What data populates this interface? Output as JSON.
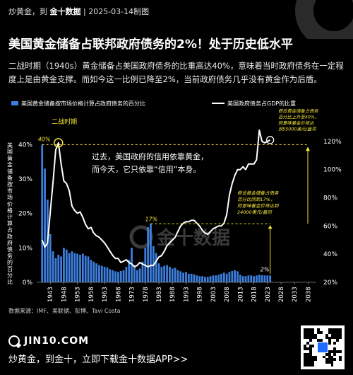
{
  "header": {
    "brand": "炒黄金，到",
    "logo_text": "金十数据",
    "sep": "|",
    "date": "2025-03-14制图"
  },
  "title": "美国黄金储备占联邦政府债务的2%！处于历史低水平",
  "intro": "二战时期（1940s）黄金储备占美国政府债务的比重高达40%，意味着当时政府债务在一定程度上是由黄金支撑。而如今这一比例已降至2%，当前政府债务几乎没有黄金作为后盾。",
  "source": "数据来源：IMF、美联储、彭博、Tavi Costa",
  "footer": {
    "url": "JIN10.COM",
    "cta": "炒黄金，到金十，立即下载金十数据APP>>"
  },
  "watermark": "金十数据",
  "colors": {
    "bar": "#3d7fe0",
    "line": "#ffffff",
    "annotation": "#f2e43a",
    "background": "#000000"
  },
  "chart_data": {
    "type": "bar",
    "x_ticks": [
      "1943",
      "1948",
      "1953",
      "1958",
      "1963",
      "1968",
      "1973",
      "1978",
      "1983",
      "1988",
      "1993",
      "1998",
      "2003",
      "2008",
      "2013",
      "2018",
      "2023",
      "2028",
      "2033",
      "2038"
    ],
    "years": [
      1940,
      1941,
      1942,
      1943,
      1944,
      1945,
      1946,
      1947,
      1948,
      1949,
      1950,
      1951,
      1952,
      1953,
      1954,
      1955,
      1956,
      1957,
      1958,
      1959,
      1960,
      1961,
      1962,
      1963,
      1964,
      1965,
      1966,
      1967,
      1968,
      1969,
      1970,
      1971,
      1972,
      1973,
      1974,
      1975,
      1976,
      1977,
      1978,
      1979,
      1980,
      1981,
      1982,
      1983,
      1984,
      1985,
      1986,
      1987,
      1988,
      1989,
      1990,
      1991,
      1992,
      1993,
      1994,
      1995,
      1996,
      1997,
      1998,
      1999,
      2000,
      2001,
      2002,
      2003,
      2004,
      2005,
      2006,
      2007,
      2008,
      2009,
      2010,
      2011,
      2012,
      2013,
      2014,
      2015,
      2016,
      2017,
      2018,
      2019,
      2020,
      2021,
      2022,
      2023,
      2024
    ],
    "series": [
      {
        "name": "美国黄金储备按市场价格计算占政府债务的百分比",
        "axis": "left",
        "values": [
          40,
          33,
          24,
          14,
          9,
          7,
          8,
          7.5,
          10,
          9.5,
          8.5,
          9,
          8.5,
          8.3,
          8,
          8.3,
          7.7,
          7.5,
          6.5,
          6,
          5.5,
          5,
          4.8,
          4.5,
          4.3,
          3.8,
          3.5,
          3.2,
          3,
          3.3,
          3.5,
          4.5,
          6.5,
          10,
          5,
          3.5,
          4,
          6,
          10,
          16,
          17,
          10.5,
          8.5,
          5.5,
          4.5,
          4.8,
          5,
          4.5,
          4,
          4.2,
          3.5,
          3.2,
          2.8,
          3,
          2.5,
          2.5,
          2.3,
          2,
          1.8,
          1.8,
          1.6,
          1.6,
          1.8,
          2,
          2,
          2.2,
          2.5,
          2.8,
          2.5,
          3,
          3.3,
          3.5,
          3.2,
          2.2,
          1.8,
          1.8,
          2,
          2,
          1.8,
          2,
          2.2,
          2.1,
          2,
          2,
          2
        ]
      },
      {
        "name": "美国政府债务占GDP的比重",
        "axis": "right",
        "values": [
          50,
          45,
          48,
          70,
          91,
          114,
          119,
          104,
          92,
          90,
          85,
          74,
          71,
          69,
          70,
          66,
          61,
          58,
          59,
          55,
          53,
          52,
          50,
          48,
          45,
          42,
          39,
          37,
          37,
          34,
          35,
          36,
          34,
          33,
          31,
          32,
          34,
          33,
          32,
          31,
          32,
          32,
          35,
          38,
          39,
          42,
          46,
          48,
          50,
          52,
          56,
          60,
          62,
          63,
          63,
          64,
          64,
          62,
          60,
          57,
          55,
          54,
          56,
          58,
          59,
          60,
          60,
          62,
          68,
          82,
          90,
          96,
          100,
          100,
          102,
          100,
          104,
          104,
          104,
          107,
          128,
          120,
          119,
          120,
          121
        ]
      }
    ],
    "y_left": {
      "ticks": [
        "0%",
        "10%",
        "20%",
        "30%",
        "40%"
      ],
      "ylim": [
        0,
        45
      ]
    },
    "y_right": {
      "ticks": [
        "20%",
        "40%",
        "60%",
        "80%",
        "100%",
        "120%"
      ],
      "ylim": [
        20,
        130
      ]
    },
    "x_range": [
      1938,
      2041
    ],
    "ylabel_left": "美国黄金储备按市场价格计算占政府债务的百分比",
    "legend_position": "top",
    "annotations": {
      "ww2": "二战时期",
      "pct40": "40%",
      "pct17": "17%",
      "pct2": "2%",
      "center_note_1": "过去，美国政府的信用依靠黄金，",
      "center_note_2": "而今天，它只依靠“信用”本身。",
      "note_high_1": "假设黄金储备占债务",
      "note_high_2": "百分比上升至40%，",
      "note_high_3": "则意味着金价将达",
      "note_high_4": "到55000美元/盎司",
      "note_mid_1": "假设黄金储备占债务",
      "note_mid_2": "百分比回到17%，",
      "note_mid_3": "则意味着金价将达到",
      "note_mid_4": "24000美元/盎司"
    }
  }
}
